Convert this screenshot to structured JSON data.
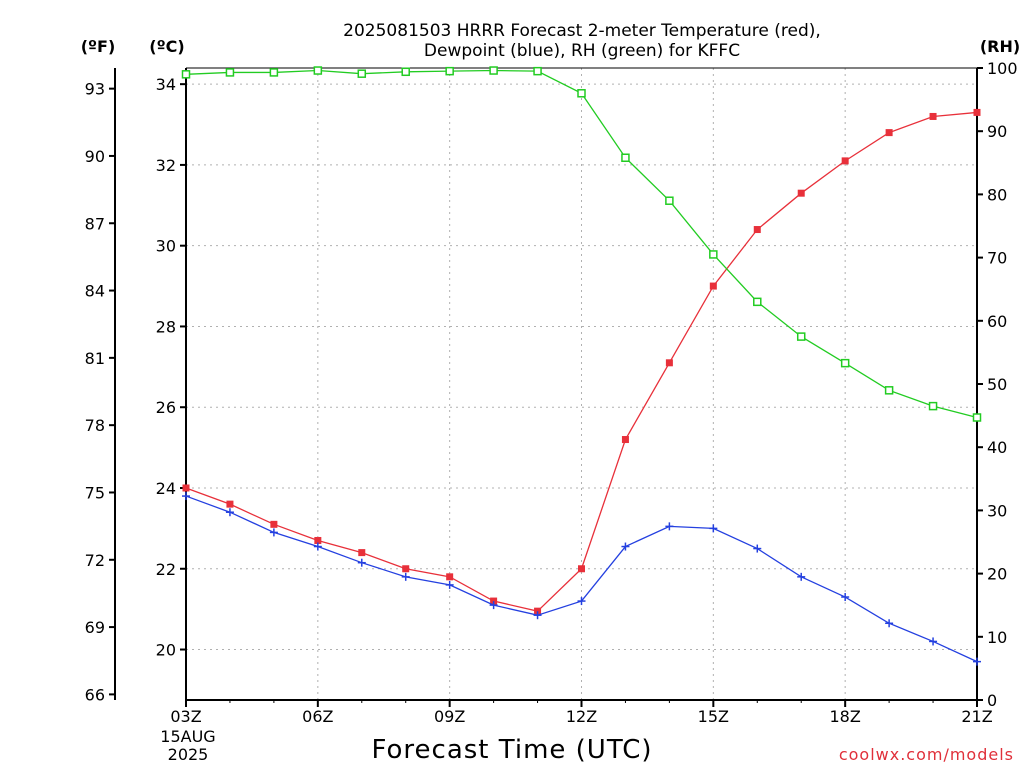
{
  "title": {
    "line1": "2025081503 HRRR Forecast 2-meter Temperature (red),",
    "line2": "Dewpoint (blue), RH (green) for KFFC"
  },
  "axes": {
    "left_outer_unit": "(ºF)",
    "left_inner_unit": "(ºC)",
    "right_unit": "(RH)",
    "fahrenheit_ticks": [
      "93",
      "90",
      "87",
      "84",
      "81",
      "78",
      "75",
      "72",
      "69",
      "66"
    ],
    "fahrenheit_values": [
      93,
      90,
      87,
      84,
      81,
      78,
      75,
      72,
      69,
      66
    ],
    "celsius_ticks": [
      "34",
      "32",
      "30",
      "28",
      "26",
      "24",
      "22",
      "20"
    ],
    "celsius_values": [
      34,
      32,
      30,
      28,
      26,
      24,
      22,
      20
    ],
    "rh_ticks": [
      "100",
      "90",
      "80",
      "70",
      "60",
      "50",
      "40",
      "30",
      "20",
      "10",
      "0"
    ],
    "rh_values": [
      100,
      90,
      80,
      70,
      60,
      50,
      40,
      30,
      20,
      10,
      0
    ],
    "x_ticks": [
      "03Z",
      "06Z",
      "09Z",
      "12Z",
      "15Z",
      "18Z",
      "21Z"
    ],
    "x_tick_hours": [
      3,
      6,
      9,
      12,
      15,
      18,
      21
    ],
    "x_date_line1": "15AUG",
    "x_date_line2": "2025",
    "xlabel": "Forecast Time (UTC)"
  },
  "credit": "coolwx.com/models",
  "colors": {
    "temperature": "#e8303a",
    "dewpoint": "#2440e0",
    "rh": "#22cc22",
    "grid": "#b0b0b0"
  },
  "chart_data": {
    "type": "line",
    "x": [
      "03Z",
      "04Z",
      "05Z",
      "06Z",
      "07Z",
      "08Z",
      "09Z",
      "10Z",
      "11Z",
      "12Z",
      "13Z",
      "14Z",
      "15Z",
      "16Z",
      "17Z",
      "18Z",
      "19Z",
      "20Z",
      "21Z"
    ],
    "x_hours": [
      3,
      4,
      5,
      6,
      7,
      8,
      9,
      10,
      11,
      12,
      13,
      14,
      15,
      16,
      17,
      18,
      19,
      20,
      21
    ],
    "xlim": [
      3,
      21
    ],
    "grid": true,
    "series": [
      {
        "name": "Temperature",
        "unit": "°C",
        "axis": "celsius",
        "marker": "filled-square",
        "values": [
          24.0,
          23.6,
          23.1,
          22.7,
          22.4,
          22.0,
          21.8,
          21.2,
          20.95,
          22.0,
          25.2,
          27.1,
          29.0,
          30.4,
          31.3,
          32.1,
          32.8,
          33.2,
          33.3
        ]
      },
      {
        "name": "Dewpoint",
        "unit": "°C",
        "axis": "celsius",
        "marker": "plus",
        "values": [
          23.8,
          23.4,
          22.9,
          22.55,
          22.15,
          21.8,
          21.6,
          21.1,
          20.85,
          21.2,
          22.55,
          23.05,
          23.0,
          22.5,
          21.8,
          21.3,
          20.65,
          20.2,
          19.7
        ]
      },
      {
        "name": "RH",
        "unit": "%",
        "axis": "rh",
        "marker": "open-square",
        "values": [
          99.0,
          99.3,
          99.3,
          99.6,
          99.1,
          99.4,
          99.5,
          99.6,
          99.5,
          96.0,
          85.8,
          79.0,
          70.5,
          63.0,
          57.5,
          53.3,
          49.0,
          46.5,
          44.7
        ]
      }
    ],
    "celsius_lim": [
      18.75,
      34.4
    ],
    "fahrenheit_lim": [
      65.75,
      93.92
    ],
    "rh_lim": [
      0,
      100
    ]
  }
}
